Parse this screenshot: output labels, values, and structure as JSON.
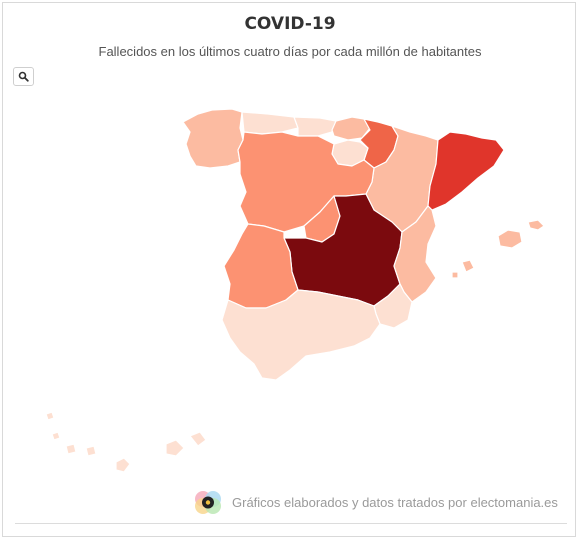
{
  "header": {
    "title": "COVID-19",
    "subtitle": "Fallecidos en los últimos cuatro días por cada millón de habitantes"
  },
  "controls": {
    "zoom_icon": "search-icon"
  },
  "footer": {
    "credit": "Gráficos elaborados y datos tratados por electomania.es",
    "logo_icon": "electomania-logo-icon"
  },
  "map": {
    "type": "choropleth",
    "colors": {
      "lightest": "#fde0d2",
      "light": "#fcbba1",
      "medium": "#fc9272",
      "strong": "#ef6548",
      "very_strong": "#e0352b",
      "darkest": "#7b0a0e",
      "border": "#ffffff"
    },
    "regions": [
      {
        "name": "galicia",
        "shade": "light"
      },
      {
        "name": "asturias",
        "shade": "lightest"
      },
      {
        "name": "cantabria",
        "shade": "lightest"
      },
      {
        "name": "pais-vasco",
        "shade": "light"
      },
      {
        "name": "navarra",
        "shade": "strong"
      },
      {
        "name": "la-rioja",
        "shade": "lightest"
      },
      {
        "name": "aragon",
        "shade": "light"
      },
      {
        "name": "cataluna",
        "shade": "very_strong"
      },
      {
        "name": "castilla-y-leon",
        "shade": "medium"
      },
      {
        "name": "madrid",
        "shade": "medium"
      },
      {
        "name": "castilla-la-mancha",
        "shade": "darkest"
      },
      {
        "name": "extremadura",
        "shade": "medium"
      },
      {
        "name": "comunidad-valenciana",
        "shade": "light"
      },
      {
        "name": "murcia",
        "shade": "lightest"
      },
      {
        "name": "andalucia",
        "shade": "lightest"
      },
      {
        "name": "baleares",
        "shade": "light"
      },
      {
        "name": "canarias",
        "shade": "lightest"
      }
    ]
  }
}
